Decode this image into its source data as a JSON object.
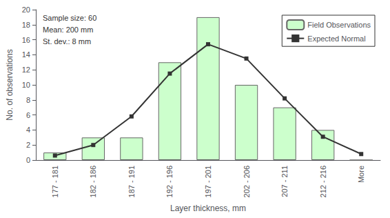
{
  "chart_data": {
    "type": "bar",
    "xlabel": "Layer thickness, mm",
    "ylabel": "No. of observations",
    "categories": [
      "177 - 181",
      "182 - 186",
      "187 - 191",
      "192 - 196",
      "197 - 201",
      "202 - 206",
      "207 - 211",
      "212 - 216",
      "More"
    ],
    "series": [
      {
        "name": "Field Observations",
        "type": "bar",
        "color": "#ccffcc",
        "values": [
          1,
          3,
          3,
          13,
          19,
          10,
          7,
          4,
          0
        ]
      },
      {
        "name": "Expected Normal",
        "type": "line",
        "color": "#333333",
        "marker": "square",
        "values": [
          0.6,
          2.0,
          5.8,
          11.5,
          15.4,
          13.5,
          8.2,
          3.1,
          0.8
        ]
      }
    ],
    "annotations": [
      "Sample size: 60",
      "Mean: 200 mm",
      "St. dev.: 8 mm"
    ],
    "ylim": [
      0,
      20
    ],
    "yticks": [
      0,
      2,
      4,
      6,
      8,
      10,
      12,
      14,
      16,
      18,
      20
    ],
    "grid": false,
    "legend": "upper right"
  }
}
